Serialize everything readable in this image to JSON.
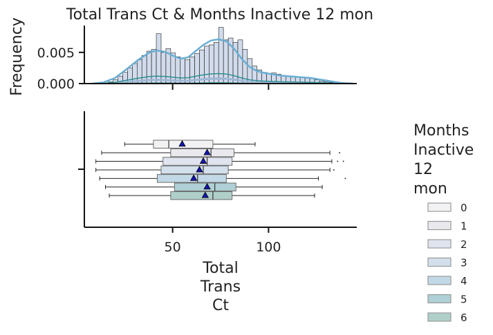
{
  "chart_data": {
    "type": "histogram+boxplot",
    "title": "Total Trans Ct & Months Inactive 12 mon",
    "xlabel": "Total\nTrans\nCt",
    "ylabel_top": "Frequency",
    "xlim": [
      4,
      146
    ],
    "ylim_top": [
      0,
      0.0093
    ],
    "xticks": [
      50,
      100
    ],
    "xtick_labels": [
      "50",
      "100"
    ],
    "yticks_top": [
      0.0,
      0.005
    ],
    "ytick_labels_top": [
      "0.000",
      "0.005"
    ],
    "legend_title": "Months\nInactive\n12\nmon",
    "legend_position": "right",
    "grid": false,
    "series": [
      {
        "name": "0",
        "color": "#f2f2f4",
        "box": {
          "whislo": 25,
          "q1": 40,
          "median": 48,
          "q3": 71,
          "whishi": 93,
          "mean": 55
        },
        "fliers": []
      },
      {
        "name": "1",
        "color": "#e9e9ee",
        "box": {
          "whislo": 13,
          "q1": 49,
          "median": 70,
          "q3": 82,
          "whishi": 132,
          "mean": 68
        },
        "fliers": [
          137
        ]
      },
      {
        "name": "2",
        "color": "#dfe4ee",
        "box": {
          "whislo": 10,
          "q1": 45,
          "median": 68,
          "q3": 81,
          "whishi": 133,
          "mean": 66
        },
        "fliers": [
          136,
          139
        ]
      },
      {
        "name": "3",
        "color": "#d3e0ec",
        "box": {
          "whislo": 10,
          "q1": 44,
          "median": 66,
          "q3": 79,
          "whishi": 132,
          "mean": 64
        },
        "fliers": [
          134
        ]
      },
      {
        "name": "4",
        "color": "#c2d8e6",
        "box": {
          "whislo": 12,
          "q1": 42,
          "median": 63,
          "q3": 78,
          "whishi": 126,
          "mean": 61
        },
        "fliers": [
          140
        ]
      },
      {
        "name": "5",
        "color": "#afd0d4",
        "box": {
          "whislo": 15,
          "q1": 51,
          "median": 72,
          "q3": 83,
          "whishi": 128,
          "mean": 68
        },
        "fliers": []
      },
      {
        "name": "6",
        "color": "#b0cfc9",
        "box": {
          "whislo": 17,
          "q1": 49,
          "median": 71,
          "q3": 81,
          "whishi": 124,
          "mean": 67
        },
        "fliers": []
      }
    ],
    "histogram": {
      "bin_edges": [
        14,
        16.5,
        19,
        21.5,
        24,
        26.5,
        29,
        31.5,
        34,
        36.5,
        39,
        41.5,
        44,
        46.5,
        49,
        51.5,
        54,
        56.5,
        59,
        61.5,
        64,
        66.5,
        69,
        71.5,
        74,
        76.5,
        79,
        81.5,
        84,
        86.5,
        89,
        91.5,
        94,
        96.5,
        99,
        101.5,
        104,
        106.5,
        109,
        111.5,
        114,
        116.5,
        119,
        121.5,
        124,
        126.5,
        129,
        131.5,
        134,
        136.5,
        139
      ],
      "density": [
        0.0001,
        0.0003,
        0.0006,
        0.0012,
        0.0018,
        0.0025,
        0.0032,
        0.0038,
        0.0045,
        0.0052,
        0.0055,
        0.008,
        0.005,
        0.0056,
        0.0049,
        0.0043,
        0.0041,
        0.0038,
        0.0043,
        0.0048,
        0.0054,
        0.006,
        0.0062,
        0.0066,
        0.009,
        0.007,
        0.0073,
        0.0066,
        0.007,
        0.0055,
        0.004,
        0.0028,
        0.0022,
        0.0018,
        0.0016,
        0.0017,
        0.0015,
        0.0013,
        0.0012,
        0.0011,
        0.001,
        0.001,
        0.0009,
        0.0008,
        0.0006,
        0.0004,
        0.0003,
        0.0002,
        0.0001,
        0.0001
      ]
    },
    "kde_total": {
      "x": [
        8,
        14,
        20,
        26,
        32,
        38,
        42,
        46,
        50,
        54,
        58,
        62,
        66,
        70,
        74,
        78,
        82,
        86,
        90,
        94,
        98,
        102,
        106,
        110,
        114,
        118,
        122,
        126,
        130,
        134,
        138,
        144
      ],
      "y": [
        0.0,
        0.0002,
        0.0009,
        0.0023,
        0.0038,
        0.005,
        0.0053,
        0.0051,
        0.0045,
        0.004,
        0.0042,
        0.0052,
        0.0062,
        0.0069,
        0.0071,
        0.0068,
        0.0056,
        0.004,
        0.0027,
        0.002,
        0.0017,
        0.0015,
        0.0013,
        0.0012,
        0.0011,
        0.001,
        0.0009,
        0.0007,
        0.0005,
        0.0003,
        0.0001,
        0.0
      ]
    },
    "kde_by_group_peak": [
      5e-05,
      0.0007,
      0.0008,
      0.0009,
      0.0016,
      0.00012,
      0.0001
    ]
  }
}
